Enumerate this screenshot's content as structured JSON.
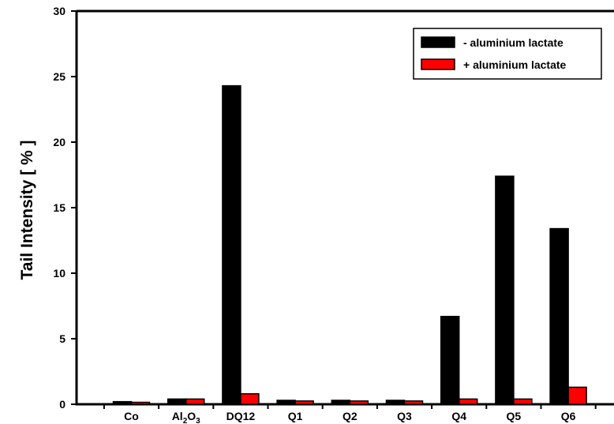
{
  "chart_data": {
    "type": "bar",
    "title": "",
    "xlabel": "",
    "ylabel": "Tail Intensity [ % ]",
    "ylim": [
      0,
      30
    ],
    "yticks": [
      0,
      5,
      10,
      15,
      20,
      25,
      30
    ],
    "categories": [
      "Co",
      "Al2O3",
      "DQ12",
      "Q1",
      "Q2",
      "Q3",
      "Q4",
      "Q5",
      "Q6"
    ],
    "category_display": [
      {
        "base": "Co"
      },
      {
        "base": "Al",
        "sub1": "2",
        "mid": "O",
        "sub2": "3"
      },
      {
        "base": "DQ12"
      },
      {
        "base": "Q1"
      },
      {
        "base": "Q2"
      },
      {
        "base": "Q3"
      },
      {
        "base": "Q4"
      },
      {
        "base": "Q5"
      },
      {
        "base": "Q6"
      }
    ],
    "series": [
      {
        "name": "- aluminium lactate",
        "color": "#000000",
        "values": [
          0.2,
          0.4,
          24.3,
          0.3,
          0.3,
          0.3,
          6.7,
          17.4,
          13.4
        ]
      },
      {
        "name": "+ aluminium lactate",
        "color": "#ff0000",
        "values": [
          0.15,
          0.4,
          0.8,
          0.25,
          0.25,
          0.25,
          0.4,
          0.4,
          1.3
        ]
      }
    ],
    "legend_position": "top-right",
    "grid": false
  }
}
